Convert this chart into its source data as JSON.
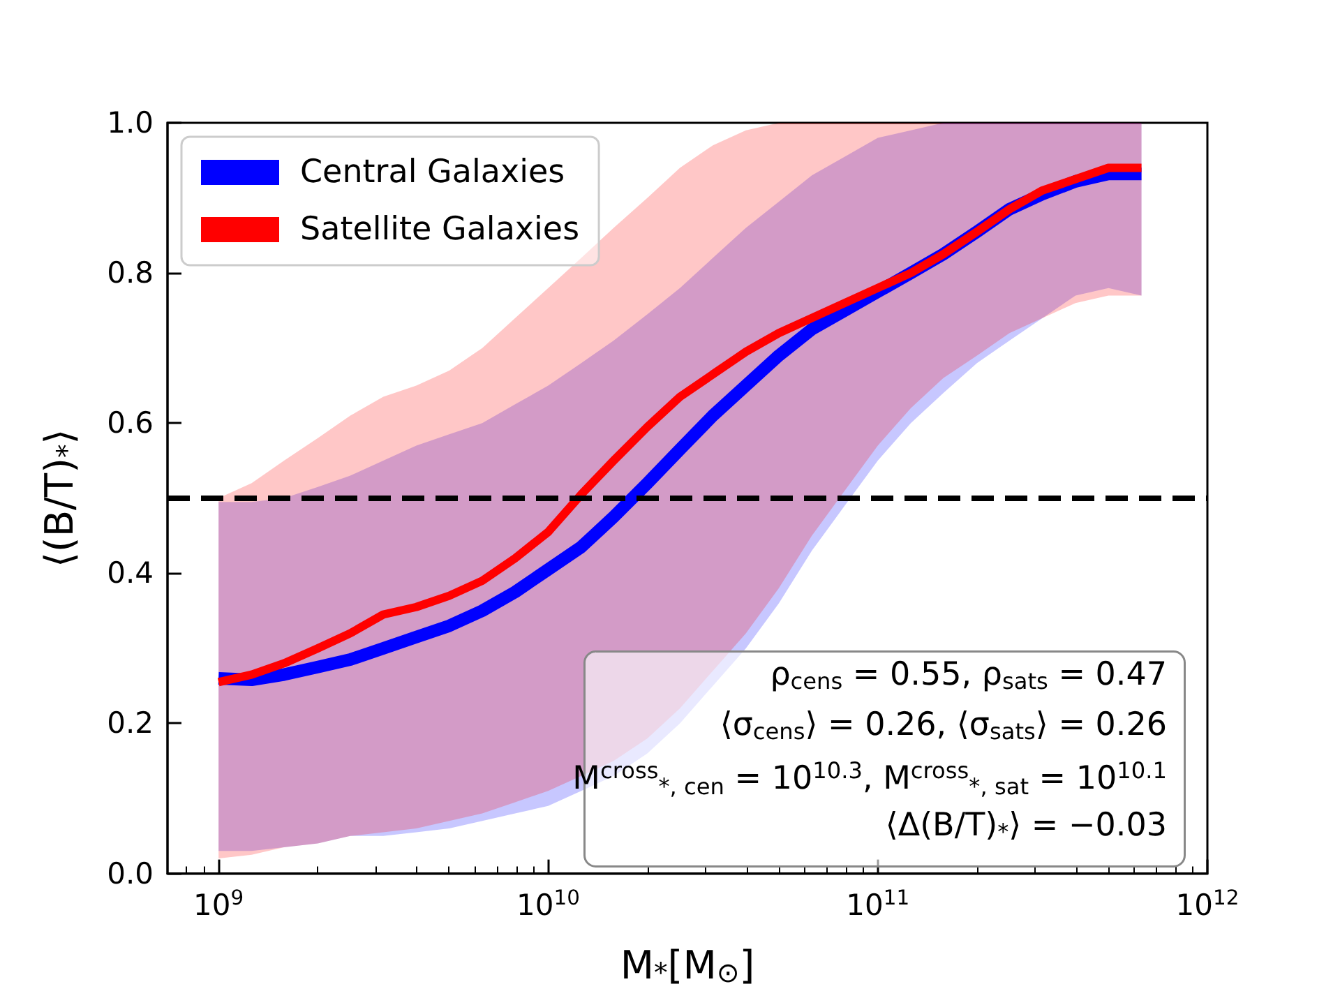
{
  "chart_data": {
    "type": "line",
    "xlabel": "M$_{*}$[M$_{⊙}$]",
    "ylabel": "⟨(B/T)$_{*}$⟩",
    "x": [
      1000000000.0,
      1260000000.0,
      1580000000.0,
      2000000000.0,
      2510000000.0,
      3160000000.0,
      3980000000.0,
      5010000000.0,
      6310000000.0,
      7940000000.0,
      10000000000.0,
      12600000000.0,
      15800000000.0,
      20000000000.0,
      25100000000.0,
      31600000000.0,
      39800000000.0,
      50100000000.0,
      63100000000.0,
      79400000000.0,
      100000000000.0,
      126000000000.0,
      158000000000.0,
      200000000000.0,
      251000000000.0,
      316000000000.0,
      398000000000.0,
      501000000000.0,
      631000000000.0
    ],
    "series": [
      {
        "name": "Central Galaxies",
        "color": "#0000ff",
        "values": [
          0.26,
          0.258,
          0.265,
          0.275,
          0.285,
          0.3,
          0.315,
          0.33,
          0.35,
          0.375,
          0.405,
          0.435,
          0.475,
          0.52,
          0.565,
          0.61,
          0.65,
          0.69,
          0.725,
          0.75,
          0.775,
          0.8,
          0.825,
          0.855,
          0.885,
          0.905,
          0.922,
          0.932,
          0.932
        ],
        "lower": [
          0.03,
          0.03,
          0.035,
          0.04,
          0.05,
          0.05,
          0.055,
          0.06,
          0.07,
          0.08,
          0.09,
          0.11,
          0.13,
          0.16,
          0.2,
          0.25,
          0.3,
          0.36,
          0.43,
          0.49,
          0.55,
          0.6,
          0.64,
          0.68,
          0.71,
          0.74,
          0.77,
          0.78,
          0.77
        ],
        "upper": [
          0.495,
          0.495,
          0.5,
          0.515,
          0.53,
          0.55,
          0.57,
          0.585,
          0.6,
          0.625,
          0.65,
          0.68,
          0.71,
          0.745,
          0.78,
          0.82,
          0.86,
          0.895,
          0.93,
          0.955,
          0.98,
          0.99,
          1.0,
          1.0,
          1.0,
          1.0,
          1.0,
          1.0,
          1.0
        ]
      },
      {
        "name": "Satellite Galaxies",
        "color": "#ff0000",
        "values": [
          0.255,
          0.265,
          0.28,
          0.3,
          0.32,
          0.345,
          0.355,
          0.37,
          0.39,
          0.42,
          0.455,
          0.505,
          0.55,
          0.595,
          0.635,
          0.665,
          0.695,
          0.72,
          0.74,
          0.76,
          0.78,
          0.8,
          0.825,
          0.855,
          0.885,
          0.91,
          0.925,
          0.94,
          0.94
        ],
        "lower": [
          0.02,
          0.025,
          0.035,
          0.04,
          0.05,
          0.055,
          0.06,
          0.07,
          0.08,
          0.095,
          0.11,
          0.13,
          0.15,
          0.18,
          0.22,
          0.27,
          0.32,
          0.38,
          0.45,
          0.51,
          0.57,
          0.62,
          0.66,
          0.69,
          0.72,
          0.74,
          0.76,
          0.77,
          0.77
        ],
        "upper": [
          0.5,
          0.52,
          0.55,
          0.58,
          0.61,
          0.635,
          0.65,
          0.67,
          0.7,
          0.74,
          0.78,
          0.82,
          0.86,
          0.9,
          0.94,
          0.97,
          0.99,
          1.0,
          1.0,
          1.0,
          1.0,
          1.0,
          1.0,
          1.0,
          1.0,
          1.0,
          1.0,
          1.0,
          1.0
        ]
      }
    ],
    "log": "x",
    "xlim": [
      700000000.0,
      1000000000000.0
    ],
    "xticks": [
      {
        "value": 1000000000.0,
        "label": "10$^{9}$"
      },
      {
        "value": 10000000000.0,
        "label": "10$^{10}$"
      },
      {
        "value": 100000000000.0,
        "label": "10$^{11}$"
      },
      {
        "value": 1000000000000.0,
        "label": "10$^{12}$"
      }
    ],
    "ylim": [
      0,
      1
    ],
    "yticks": [
      {
        "value": 0,
        "label": "0.0"
      },
      {
        "value": 0.2,
        "label": "0.2"
      },
      {
        "value": 0.4,
        "label": "0.4"
      },
      {
        "value": 0.6,
        "label": "0.6"
      },
      {
        "value": 0.8,
        "label": "0.8"
      },
      {
        "value": 1,
        "label": "1.0"
      }
    ],
    "ref_lines": [
      {
        "axis": "y",
        "value": 0.5,
        "color": "#000000",
        "line_style": "dashed"
      }
    ],
    "annotations": [
      "ρ$_{cens}$ = 0.55, ρ$_{sats}$ = 0.47",
      "⟨σ$_{cens}$⟩ = 0.26, ⟨σ$_{sats}$⟩ = 0.26",
      "M$^{cross}$$_{*, cen}$ = 10$^{10.3}$, M$^{cross}$$_{*, sat}$ = 10$^{10.1}$",
      "⟨Δ(B/T)$_{*}$⟩ = −0.03"
    ],
    "legend": "top left",
    "grid": false,
    "marker": "none",
    "line_style": "solid"
  }
}
